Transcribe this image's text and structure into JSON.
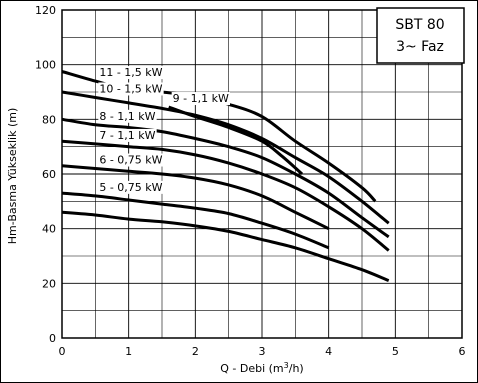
{
  "chart_data": {
    "type": "line",
    "title": "SBT 80",
    "subtitle": "3~ Faz",
    "xlabel": "Q - Debi (m³/h)",
    "ylabel": "Hm-Basma Yükseklik (m)",
    "xlim": [
      0,
      6
    ],
    "ylim": [
      0,
      120
    ],
    "xticks": [
      "0",
      "1",
      "2",
      "3",
      "4",
      "5",
      "6"
    ],
    "yticks": [
      "0",
      "20",
      "40",
      "60",
      "80",
      "100",
      "120"
    ],
    "grid": true,
    "series": [
      {
        "name": "11 - 1,5 kW",
        "x": [
          0,
          0.5,
          1.0,
          1.5,
          2.0,
          2.5,
          3.0,
          3.5,
          4.0,
          4.5,
          4.7
        ],
        "y": [
          97.5,
          94,
          91,
          90,
          88.5,
          85.5,
          81,
          72,
          64,
          55,
          50
        ]
      },
      {
        "name": "10 - 1,5 kW",
        "x": [
          0,
          0.5,
          1.0,
          1.5,
          2.0,
          2.5,
          3.0,
          3.5,
          4.0,
          4.5,
          4.9
        ],
        "y": [
          90,
          88,
          86,
          84,
          81.5,
          78,
          73,
          66,
          59,
          50,
          42
        ]
      },
      {
        "name": "9 - 1,1 kW",
        "x": [
          1.6,
          2.0,
          2.5,
          3.0,
          3.3,
          3.6
        ],
        "y": [
          84.5,
          81,
          77,
          72,
          66.5,
          60
        ]
      },
      {
        "name": "8 - 1,1 kW",
        "x": [
          0,
          0.5,
          1.0,
          1.5,
          2.0,
          2.5,
          3.0,
          3.5,
          4.0,
          4.5,
          4.9
        ],
        "y": [
          80,
          78,
          77,
          75.5,
          73,
          70,
          66,
          60,
          53,
          44,
          37
        ]
      },
      {
        "name": "7 - 1,1 kW",
        "x": [
          0,
          0.5,
          1.0,
          1.5,
          2.0,
          2.5,
          3.0,
          3.5,
          4.0,
          4.5,
          4.9
        ],
        "y": [
          72,
          71,
          70,
          69,
          67,
          64,
          60,
          55,
          48,
          40,
          32
        ]
      },
      {
        "name": "6 - 0,75 kW",
        "x": [
          0,
          0.5,
          1.0,
          1.5,
          2.0,
          2.5,
          3.0,
          3.5,
          4.0
        ],
        "y": [
          63,
          62,
          61,
          60,
          58.5,
          56,
          52,
          46,
          40
        ]
      },
      {
        "name": "5 - 0,75 kW",
        "x": [
          0,
          0.5,
          1.0,
          1.5,
          2.0,
          2.5,
          3.0,
          3.5,
          4.0
        ],
        "y": [
          53,
          52,
          50.5,
          49,
          47.5,
          45.5,
          42,
          38,
          33
        ]
      },
      {
        "name": "",
        "x": [
          0,
          0.5,
          1.0,
          1.5,
          2.0,
          2.5,
          3.0,
          3.5,
          4.0,
          4.5,
          4.9
        ],
        "y": [
          46,
          45,
          43.5,
          42.5,
          41,
          39,
          36,
          33,
          29,
          25,
          21
        ]
      }
    ]
  }
}
